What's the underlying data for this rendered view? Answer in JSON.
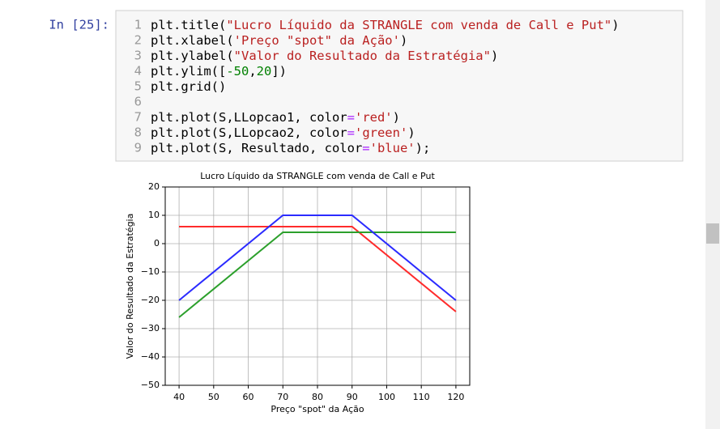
{
  "prompt": "In [25]:",
  "code": [
    {
      "n": 1,
      "text": "plt.title(\"Lucro Líquido da STRANGLE com venda de Call e Put\")"
    },
    {
      "n": 2,
      "text": "plt.xlabel('Preço \"spot\" da Ação')"
    },
    {
      "n": 3,
      "text": "plt.ylabel(\"Valor do Resultado da Estratégia\")"
    },
    {
      "n": 4,
      "text": "plt.ylim([-50,20])"
    },
    {
      "n": 5,
      "text": "plt.grid()"
    },
    {
      "n": 6
    },
    {
      "n": 7,
      "text": "plt.plot(S,LLopcao1, color='red')"
    },
    {
      "n": 8,
      "text": "plt.plot(S,LLopcao2, color='green')"
    },
    {
      "n": 9,
      "text": "plt.plot(S, Resultado, color='blue');"
    }
  ],
  "chart_data": {
    "type": "line",
    "title": "Lucro Líquido da STRANGLE com venda de Call e Put",
    "xlabel": "Preço \"spot\" da Ação",
    "ylabel": "Valor do Resultado da Estratégia",
    "x": [
      40,
      70,
      90,
      120
    ],
    "series": [
      {
        "name": "LLopcao1",
        "color": "#ff2b2b",
        "values": [
          6,
          6,
          6,
          -24
        ]
      },
      {
        "name": "LLopcao2",
        "color": "#2ca02c",
        "values": [
          -26,
          4,
          4,
          4
        ]
      },
      {
        "name": "Resultado",
        "color": "#2b2bff",
        "values": [
          -20,
          10,
          10,
          -20
        ]
      }
    ],
    "xlim": [
      36,
      124
    ],
    "xticks": [
      40,
      50,
      60,
      70,
      80,
      90,
      100,
      110,
      120
    ],
    "ylim": [
      -50,
      20
    ],
    "yticks": [
      {
        "value": -50,
        "label": "−50"
      },
      {
        "value": -40,
        "label": "−40"
      },
      {
        "value": -30,
        "label": "−30"
      },
      {
        "value": -20,
        "label": "−20"
      },
      {
        "value": -10,
        "label": "−10"
      },
      0,
      10,
      20
    ],
    "grid": true
  }
}
